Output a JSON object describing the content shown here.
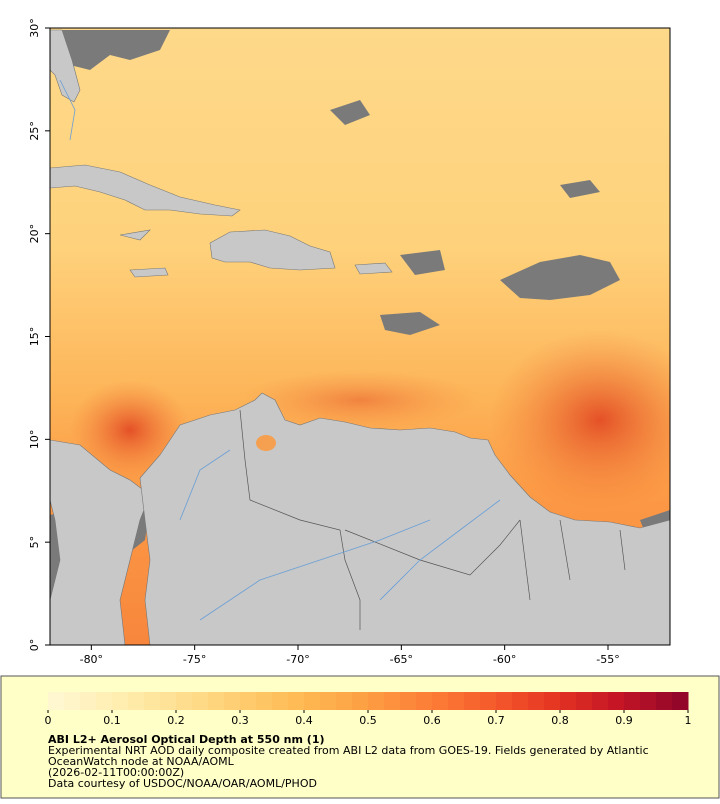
{
  "map": {
    "xlim": [
      -82,
      -52
    ],
    "ylim": [
      0,
      30
    ],
    "xticks": [
      {
        "value": -80,
        "label": "-80°"
      },
      {
        "value": -75,
        "label": "-75°"
      },
      {
        "value": -70,
        "label": "-70°"
      },
      {
        "value": -65,
        "label": "-65°"
      },
      {
        "value": -60,
        "label": "-60°"
      },
      {
        "value": -55,
        "label": "-55°"
      }
    ],
    "yticks": [
      {
        "value": 0,
        "label": "0°"
      },
      {
        "value": 5,
        "label": "5°"
      },
      {
        "value": 10,
        "label": "10°"
      },
      {
        "value": 15,
        "label": "15°"
      },
      {
        "value": 20,
        "label": "20°"
      },
      {
        "value": 25,
        "label": "25°"
      },
      {
        "value": 30,
        "label": "30°"
      }
    ]
  },
  "colorbar": {
    "range": [
      0,
      1
    ],
    "ticks": [
      0,
      0.1,
      0.2,
      0.3,
      0.4,
      0.5,
      0.6,
      0.7,
      0.8,
      0.9,
      1
    ],
    "colors": [
      "#fff7d0",
      "#ffeeb0",
      "#fedf90",
      "#fecc6e",
      "#feb852",
      "#fd9e43",
      "#fc7d37",
      "#f65a2c",
      "#e53522",
      "#c51526",
      "#93062a"
    ]
  },
  "caption": {
    "title": "ABI L2+ Aerosol Optical Depth at 550 nm (1)",
    "lines": [
      "Experimental NRT AOD daily composite created from ABI L2 data from GOES-19. Fields generated by Atlantic",
      "OceanWatch node at NOAA/AOML",
      "(2026-02-11T00:00:00Z)",
      "Data courtesy of USDOC/NOAA/OAR/AOML/PHOD"
    ]
  }
}
